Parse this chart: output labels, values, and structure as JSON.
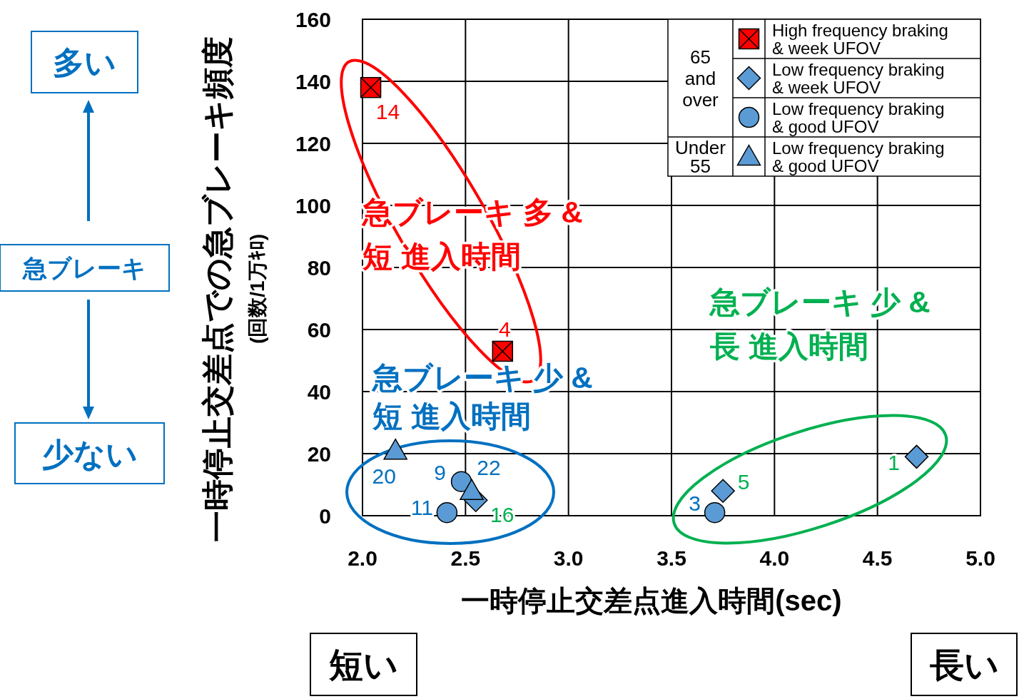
{
  "chart_data": {
    "type": "scatter",
    "xlabel": "一時停止交差点進入時間(sec)",
    "ylabel": "一時停止交差点での急ブレーキ頻度\n(回数/1万ｷﾛ)",
    "xlim": [
      2.0,
      5.0
    ],
    "ylim": [
      0,
      160
    ],
    "xticks": [
      {
        "value": 2.0,
        "label": "2.0"
      },
      {
        "value": 2.5,
        "label": "2.5"
      },
      {
        "value": 3.0,
        "label": "3.0"
      },
      {
        "value": 3.5,
        "label": "3.5"
      },
      {
        "value": 4.0,
        "label": "4.0"
      },
      {
        "value": 4.5,
        "label": "4.5"
      },
      {
        "value": 5.0,
        "label": "5.0"
      }
    ],
    "yticks": [
      0,
      20,
      40,
      60,
      80,
      100,
      120,
      140,
      160
    ],
    "grid": true,
    "legend": "top right",
    "series": [
      {
        "name": "High frequency braking\n& week UFOV",
        "color": "#ff0000",
        "marker": "square",
        "x": [
          2.04,
          2.68
        ],
        "values": [
          138,
          53
        ]
      },
      {
        "name": "Low frequency braking\n& week UFOV",
        "color": "#5b9bd5",
        "marker": "diamond",
        "x": [
          4.69,
          3.75,
          2.55
        ],
        "values": [
          19,
          8,
          5
        ]
      },
      {
        "name": "Low frequency braking\n& good UFOV",
        "color": "#5b9bd5",
        "marker": "circle",
        "x": [
          3.71,
          2.48,
          2.41
        ],
        "values": [
          1,
          11,
          1
        ]
      },
      {
        "name": "Low frequency braking\n& good UFOV",
        "color": "#5b9bd5",
        "marker": "triangle",
        "x": [
          2.16,
          2.53
        ],
        "values": [
          21,
          8
        ]
      }
    ],
    "annotations": [
      {
        "text": "14",
        "x": 2.04,
        "y": 138
      },
      {
        "text": "4",
        "x": 2.68,
        "y": 53
      },
      {
        "text": "20",
        "x": 2.16,
        "y": 21
      },
      {
        "text": "9",
        "x": 2.48,
        "y": 11
      },
      {
        "text": "22",
        "x": 2.53,
        "y": 8
      },
      {
        "text": "11",
        "x": 2.41,
        "y": 1
      },
      {
        "text": "16",
        "x": 2.55,
        "y": 5
      },
      {
        "text": "3",
        "x": 3.71,
        "y": 1
      },
      {
        "text": "5",
        "x": 3.75,
        "y": 8
      },
      {
        "text": "1",
        "x": 4.69,
        "y": 19
      },
      "65\nand\nover",
      "Under\n55",
      "急ブレーキ 多 &\n短 進入時間",
      "急ブレーキ 少 &\n短 進入時間",
      "急ブレーキ 少 &\n長 進入時間",
      "多い",
      "急ブレーキ",
      "少ない",
      "短い",
      "長い"
    ]
  }
}
